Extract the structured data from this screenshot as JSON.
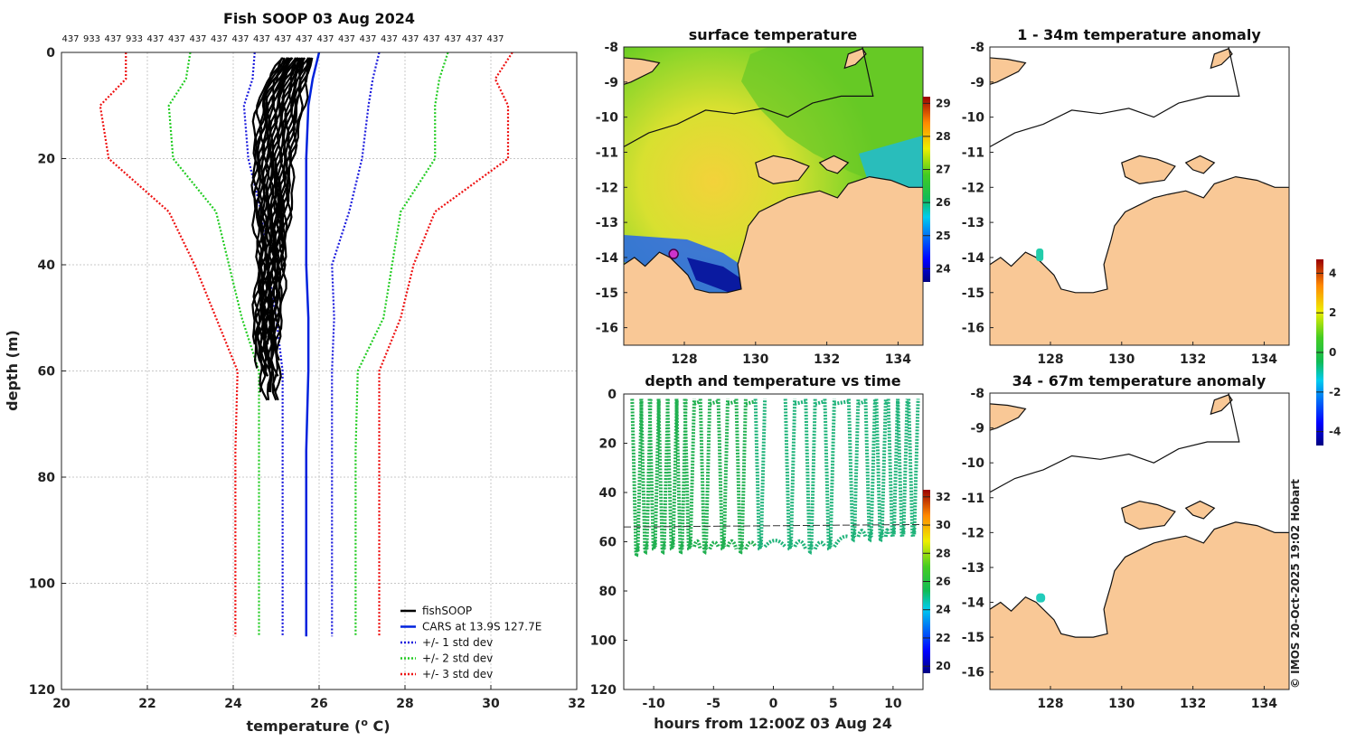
{
  "chart_data": [
    {
      "type": "line",
      "id": "profile",
      "title": "Fish SOOP 03 Aug 2024",
      "xlabel": "temperature (",
      "xlabel_sup": "o",
      "xlabel_end": " C)",
      "ylabel": "depth (m)",
      "xlim": [
        20,
        32
      ],
      "ylim": [
        0,
        120
      ],
      "xticks": [
        "20",
        "22",
        "24",
        "26",
        "28",
        "30",
        "32"
      ],
      "yticks": [
        "0",
        "20",
        "40",
        "60",
        "80",
        "100",
        "120"
      ],
      "counts": [
        "437",
        "933",
        "437",
        "933",
        "437",
        "437",
        "437",
        "437",
        "437",
        "437",
        "437",
        "437",
        "437",
        "437",
        "437",
        "437",
        "437",
        "437",
        "437",
        "437",
        "437"
      ],
      "legend": [
        "fishSOOP",
        "CARS at 13.9S 127.7E",
        "+/- 1 std dev",
        "+/- 2 std dev",
        "+/- 3 std dev"
      ],
      "depths": [
        0,
        5,
        10,
        20,
        30,
        40,
        50,
        60,
        75,
        110
      ],
      "cars_mean": [
        26.0,
        25.85,
        25.75,
        25.7,
        25.7,
        25.7,
        25.75,
        25.75,
        25.7,
        25.7
      ],
      "std1_lower": [
        24.5,
        24.45,
        24.25,
        24.35,
        24.65,
        24.8,
        25.0,
        25.15,
        25.15,
        25.15
      ],
      "std1_upper": [
        27.4,
        27.25,
        27.15,
        27.0,
        26.7,
        26.3,
        26.35,
        26.3,
        26.3,
        26.3
      ],
      "std2_lower": [
        23.0,
        22.9,
        22.5,
        22.6,
        23.6,
        23.9,
        24.2,
        24.6,
        24.6,
        24.6
      ],
      "std2_upper": [
        29.0,
        28.8,
        28.7,
        28.7,
        27.9,
        27.7,
        27.5,
        26.9,
        26.85,
        26.85
      ],
      "std3_lower": [
        21.5,
        21.5,
        20.9,
        21.1,
        22.5,
        23.1,
        23.6,
        24.1,
        24.05,
        24.05
      ],
      "std3_upper": [
        30.5,
        30.1,
        30.4,
        30.4,
        28.7,
        28.2,
        27.9,
        27.4,
        27.4,
        27.4
      ],
      "fish_bounds_left": [
        [
          1,
          25.0
        ],
        [
          8,
          24.45
        ],
        [
          20,
          24.3
        ],
        [
          40,
          24.5
        ],
        [
          55,
          24.4
        ],
        [
          60,
          24.55
        ],
        [
          66,
          24.6
        ]
      ],
      "fish_bounds_right": [
        [
          1,
          25.9
        ],
        [
          5,
          25.75
        ],
        [
          10,
          25.65
        ],
        [
          20,
          25.45
        ],
        [
          40,
          25.2
        ],
        [
          55,
          25.05
        ],
        [
          65,
          25.1
        ]
      ]
    },
    {
      "type": "scatter",
      "id": "timeseries",
      "title": "depth and temperature vs time",
      "xlabel": "hours from 12:00Z 03 Aug 24",
      "xlim": [
        -12.5,
        12.5
      ],
      "ylim": [
        0,
        120
      ],
      "xticks": [
        "-10",
        "-5",
        "0",
        "5",
        "10"
      ],
      "yticks": [
        "0",
        "20",
        "40",
        "60",
        "80",
        "100",
        "120"
      ],
      "colorbar_ticks": [
        "20",
        "22",
        "24",
        "26",
        "28",
        "30",
        "32"
      ],
      "clim": [
        19.5,
        32.5
      ],
      "dive_times": [
        -11.8,
        -11.05,
        -10.35,
        -9.6,
        -8.85,
        -8.1,
        -7.4,
        -6.1,
        -4.6,
        -3.1,
        -1.5,
        1.0,
        2.7,
        4.3,
        6.3,
        7.7,
        8.6,
        9.6,
        10.4,
        11.3
      ],
      "dive_bottoms": [
        64,
        63,
        62,
        63,
        62,
        63,
        62,
        63,
        62,
        63,
        62,
        62,
        63,
        62,
        58,
        58,
        58,
        57,
        57,
        57
      ],
      "surface_temp": [
        25.6,
        25.6,
        25.6,
        25.6,
        25.6,
        25.5,
        25.5,
        25.5,
        25.5,
        25.5,
        25.4,
        25.4,
        25.4,
        25.3,
        24.9,
        24.8,
        24.8,
        24.8,
        24.8,
        24.8
      ],
      "mixed_layer_depth": [
        54,
        53
      ]
    },
    {
      "type": "heatmap",
      "id": "sst_map",
      "title": "surface temperature",
      "xlim": [
        126.3,
        134.7
      ],
      "ylim": [
        -16.5,
        -8
      ],
      "xticks": [
        "128",
        "130",
        "132",
        "134"
      ],
      "yticks": [
        "-8",
        "-9",
        "-10",
        "-11",
        "-12",
        "-13",
        "-14",
        "-15",
        "-16"
      ],
      "colorbar_ticks": [
        "24",
        "25",
        "26",
        "27",
        "28",
        "29"
      ],
      "station": [
        127.7,
        -13.9
      ]
    },
    {
      "type": "heatmap",
      "id": "anomaly_upper",
      "title": "1 - 34m temperature anomaly",
      "xlim": [
        126.3,
        134.7
      ],
      "ylim": [
        -16.5,
        -8
      ],
      "xticks": [
        "128",
        "130",
        "132",
        "134"
      ],
      "yticks": [
        "-8",
        "-9",
        "-10",
        "-11",
        "-12",
        "-13",
        "-14",
        "-15",
        "-16"
      ],
      "station": [
        127.7,
        -13.9
      ]
    },
    {
      "type": "heatmap",
      "id": "anomaly_lower",
      "title": "34 - 67m temperature anomaly",
      "xlim": [
        126.3,
        134.7
      ],
      "ylim": [
        -16.5,
        -8
      ],
      "xticks": [
        "128",
        "130",
        "132",
        "134"
      ],
      "yticks": [
        "-8",
        "-9",
        "-10",
        "-11",
        "-12",
        "-13",
        "-14",
        "-15",
        "-16"
      ],
      "station": [
        127.7,
        -13.9
      ]
    }
  ],
  "anomaly_colorbar": {
    "ticks": [
      "4",
      "2",
      "0",
      "-2",
      "-4"
    ]
  },
  "credit": "© IMOS 20-Oct-2025 19:02 Hobart",
  "colors": {
    "fish": "#000000",
    "cars": "#0022dd",
    "std1": "#1a1add",
    "std2": "#22cc22",
    "std3": "#ee1111",
    "land": "#f9c896"
  }
}
